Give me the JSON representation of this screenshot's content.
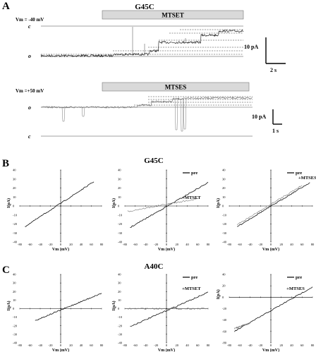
{
  "panels": {
    "A": {
      "letter": "A",
      "title": "G45C",
      "trace1": {
        "vm": "Vm = -40 mV",
        "bar": "MTSET",
        "c": "c",
        "o": "o",
        "scale_current": "10 pA",
        "scale_time": "2 s"
      },
      "trace2": {
        "vm": "Vm =+50 mV",
        "bar": "MTSES",
        "o": "o",
        "c": "c",
        "scale_current": "10 pA",
        "scale_time": "1 s"
      }
    },
    "B": {
      "letter": "B",
      "title": "G45C",
      "legend_pre": "pre",
      "label_mtset": "+MTSET",
      "label_mtses": "+MTSES"
    },
    "C": {
      "letter": "C",
      "title": "A40C",
      "legend_pre": "pre",
      "label_mtset": "+MTSET",
      "label_mtses": "+MTSES"
    }
  },
  "iv_axes": {
    "ylabel": "I(pA)",
    "xlabel": "Vm (mV)",
    "xticks": [
      "-80",
      "-60",
      "-40",
      "-20",
      "0",
      "20",
      "40",
      "60",
      "80"
    ],
    "yticks": [
      "40",
      "30",
      "20",
      "10",
      "0",
      "-10",
      "-20",
      "-30",
      "-40"
    ]
  },
  "chart_data": [
    {
      "type": "line",
      "panel": "B1",
      "xlabel": "Vm (mV)",
      "ylabel": "I(pA)",
      "xlim": [
        -80,
        80
      ],
      "ylim": [
        -40,
        40
      ],
      "series": [
        {
          "x": [
            -70,
            65
          ],
          "y": [
            -23,
            27
          ]
        }
      ]
    },
    {
      "type": "line",
      "panel": "B2",
      "xlabel": "Vm (mV)",
      "ylabel": "I(pA)",
      "xlim": [
        -80,
        80
      ],
      "ylim": [
        -40,
        40
      ],
      "series": [
        {
          "name": "pre",
          "x": [
            -70,
            80
          ],
          "y": [
            -24,
            26
          ]
        },
        {
          "name": "+MTSET",
          "x": [
            -75,
            60
          ],
          "y": [
            -6,
            8
          ]
        }
      ]
    },
    {
      "type": "line",
      "panel": "B3",
      "xlabel": "Vm (mV)",
      "ylabel": "I(pA)",
      "xlim": [
        -80,
        80
      ],
      "ylim": [
        -40,
        40
      ],
      "series": [
        {
          "name": "pre",
          "x": [
            -65,
            75
          ],
          "y": [
            -23,
            26
          ]
        },
        {
          "name": "+MTSES",
          "x": [
            -65,
            60
          ],
          "y": [
            -21,
            23
          ]
        }
      ]
    },
    {
      "type": "line",
      "panel": "C1",
      "xlabel": "Vm (mV)",
      "ylabel": "I(pA)",
      "xlim": [
        -80,
        80
      ],
      "ylim": [
        -40,
        40
      ],
      "series": [
        {
          "x": [
            -50,
            80
          ],
          "y": [
            -14,
            18
          ]
        }
      ]
    },
    {
      "type": "line",
      "panel": "C2",
      "xlabel": "Vm (mV)",
      "ylabel": "I(pA)",
      "xlim": [
        -80,
        80
      ],
      "ylim": [
        -40,
        40
      ],
      "series": [
        {
          "name": "pre",
          "x": [
            -70,
            80
          ],
          "y": [
            -21,
            19
          ]
        },
        {
          "name": "+MTSET",
          "x": [
            -75,
            80
          ],
          "y": [
            0,
            0
          ]
        }
      ]
    },
    {
      "type": "line",
      "panel": "C3",
      "xlabel": "Vm (mV)",
      "ylabel": "I(pA)",
      "xlim": [
        -80,
        80
      ],
      "ylim": [
        -80,
        40
      ],
      "series": [
        {
          "name": "pre",
          "x": [
            -70,
            80
          ],
          "y": [
            -60,
            18
          ]
        },
        {
          "name": "+MTSES",
          "x": [
            -70,
            -40
          ],
          "y": [
            -55,
            -45
          ]
        }
      ]
    }
  ]
}
